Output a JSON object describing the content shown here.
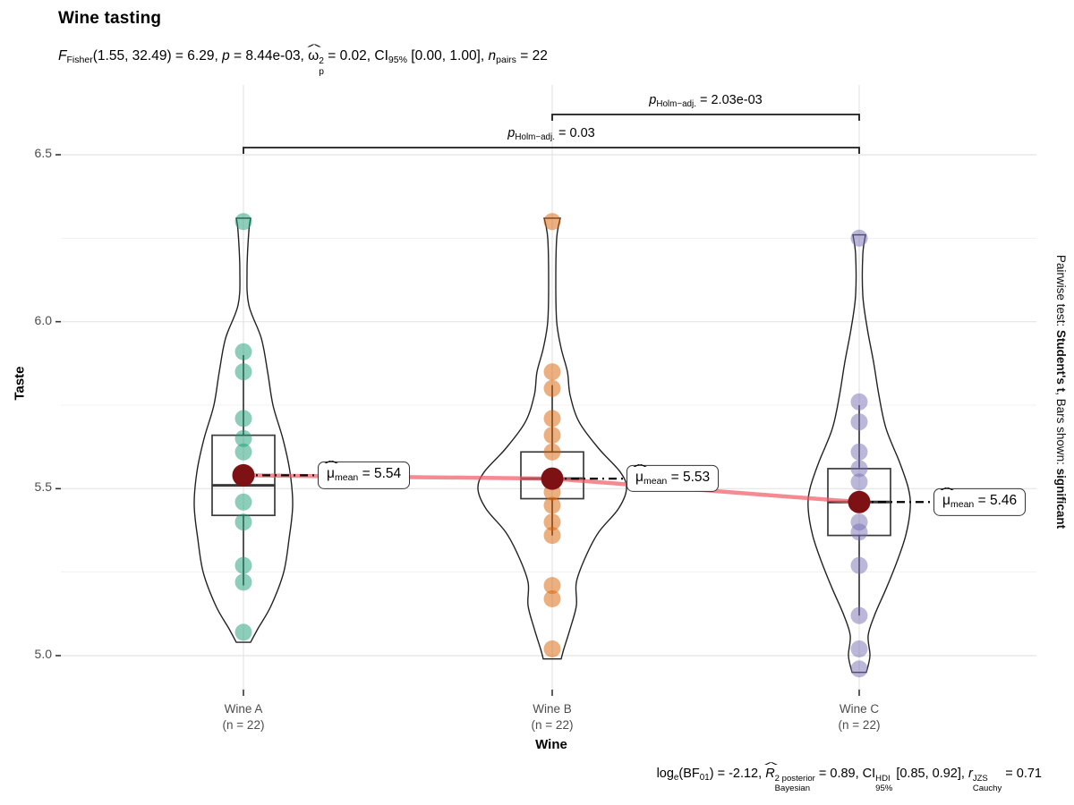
{
  "title": "Wine tasting",
  "subtitle_segments": [
    {
      "t": "F",
      "f": "i"
    },
    {
      "t": "Fisher",
      "f": "sub"
    },
    {
      "t": "(1.55, 32.49) = 6.29, ",
      "f": "n"
    },
    {
      "t": "p",
      "f": "i"
    },
    {
      "t": " = 8.44e-03, ",
      "f": "n"
    },
    {
      "t": "ω",
      "f": "n",
      "hat": true
    },
    {
      "f": "stack",
      "sup": "2",
      "sub": "p"
    },
    {
      "t": " = 0.02, CI",
      "f": "n"
    },
    {
      "t": "95%",
      "f": "sub"
    },
    {
      "t": " [0.00, 1.00], ",
      "f": "n"
    },
    {
      "t": "n",
      "f": "i"
    },
    {
      "t": "pairs",
      "f": "sub"
    },
    {
      "t": " = 22",
      "f": "n"
    }
  ],
  "caption_segments": [
    {
      "t": "log",
      "f": "n"
    },
    {
      "t": "e",
      "f": "sub"
    },
    {
      "t": "(BF",
      "f": "n"
    },
    {
      "t": "01",
      "f": "sub"
    },
    {
      "t": ") = -2.12, ",
      "f": "n"
    },
    {
      "t": "R",
      "f": "i",
      "hat": true
    },
    {
      "f": "stack",
      "sup": "2 posterior",
      "sub": "Bayesian"
    },
    {
      "t": " = 0.89, CI",
      "f": "n"
    },
    {
      "f": "stack",
      "sup": "HDI",
      "sub": "95%"
    },
    {
      "t": " [0.85, 0.92], ",
      "f": "n"
    },
    {
      "t": "r",
      "f": "i"
    },
    {
      "f": "stack",
      "sup": "JZS",
      "sub": "Cauchy"
    },
    {
      "t": " = 0.71",
      "f": "n"
    }
  ],
  "side_note_segments": [
    {
      "t": "Pairwise test: ",
      "f": "n"
    },
    {
      "t": "Student's t",
      "f": "b"
    },
    {
      "t": ", Bars shown: ",
      "f": "n"
    },
    {
      "t": "significant",
      "f": "b"
    }
  ],
  "chart_data": {
    "type": "violin-box-dot",
    "title": "Wine tasting",
    "xlabel": "Wine",
    "ylabel": "Taste",
    "y_tick_labels": [
      "6.5",
      "6.0",
      "5.5",
      "5.0"
    ],
    "y_tick_values": [
      6.5,
      6.0,
      5.5,
      5.0
    ],
    "y_minor_values": [
      6.25,
      5.75,
      5.25
    ],
    "ylim": [
      4.9,
      6.71
    ],
    "grid": true,
    "legend_position": "none",
    "colors": {
      "mean_point": "#7E1113",
      "mean_trend_line": "#F05A64",
      "violin_stroke": "#222222",
      "box_stroke": "#3A3A3A",
      "grid_major": "#E4E4E4",
      "grid_minor": "#F1F1F1",
      "axis_text": "#4D4D4D",
      "tick_mark": "#333333",
      "bracket": "#1A1A1A",
      "connector": "#000000"
    },
    "groups": [
      {
        "label": "Wine A",
        "sublabel": "(n = 22)",
        "n": 22,
        "point_color": "#1B9E77",
        "mean": 5.54,
        "median": 5.51,
        "q1": 5.42,
        "q3": 5.66,
        "whisker_low": 5.21,
        "whisker_high": 5.9,
        "points": [
          6.3,
          5.91,
          5.85,
          5.71,
          5.65,
          5.61,
          5.46,
          5.4,
          5.27,
          5.22,
          5.07
        ],
        "violin_profile": [
          [
            6.31,
            8
          ],
          [
            6.27,
            6
          ],
          [
            6.15,
            4
          ],
          [
            6.05,
            6
          ],
          [
            5.95,
            20
          ],
          [
            5.85,
            27
          ],
          [
            5.75,
            33
          ],
          [
            5.65,
            44
          ],
          [
            5.55,
            52
          ],
          [
            5.45,
            55
          ],
          [
            5.35,
            51
          ],
          [
            5.25,
            45
          ],
          [
            5.15,
            31
          ],
          [
            5.08,
            16
          ],
          [
            5.04,
            8
          ]
        ],
        "mean_label_segments": [
          {
            "t": "μ",
            "f": "n",
            "hat": true
          },
          {
            "t": "mean",
            "f": "sub"
          },
          {
            "t": " = 5.54",
            "f": "n"
          }
        ]
      },
      {
        "label": "Wine B",
        "sublabel": "(n = 22)",
        "n": 22,
        "point_color": "#D95F02",
        "mean": 5.53,
        "median": 5.53,
        "q1": 5.47,
        "q3": 5.61,
        "whisker_low": 5.36,
        "whisker_high": 5.81,
        "points": [
          6.3,
          5.85,
          5.8,
          5.71,
          5.66,
          5.61,
          5.49,
          5.45,
          5.4,
          5.36,
          5.21,
          5.17,
          5.02
        ],
        "violin_profile": [
          [
            6.31,
            9
          ],
          [
            6.25,
            5
          ],
          [
            6.12,
            4
          ],
          [
            6.0,
            5
          ],
          [
            5.92,
            10
          ],
          [
            5.85,
            17
          ],
          [
            5.78,
            20
          ],
          [
            5.7,
            30
          ],
          [
            5.62,
            52
          ],
          [
            5.55,
            76
          ],
          [
            5.5,
            83
          ],
          [
            5.44,
            74
          ],
          [
            5.37,
            52
          ],
          [
            5.3,
            38
          ],
          [
            5.22,
            27
          ],
          [
            5.15,
            27
          ],
          [
            5.08,
            20
          ],
          [
            5.02,
            13
          ],
          [
            4.99,
            10
          ]
        ],
        "mean_label_segments": [
          {
            "t": "μ",
            "f": "n",
            "hat": true
          },
          {
            "t": "mean",
            "f": "sub"
          },
          {
            "t": " = 5.53",
            "f": "n"
          }
        ]
      },
      {
        "label": "Wine C",
        "sublabel": "(n = 22)",
        "n": 22,
        "point_color": "#7570B3",
        "mean": 5.46,
        "median": 5.46,
        "q1": 5.36,
        "q3": 5.56,
        "whisker_low": 5.12,
        "whisker_high": 5.75,
        "points": [
          6.25,
          5.76,
          5.7,
          5.61,
          5.56,
          5.52,
          5.4,
          5.37,
          5.27,
          5.12,
          5.02,
          4.96
        ],
        "violin_profile": [
          [
            6.26,
            7
          ],
          [
            6.2,
            4
          ],
          [
            6.08,
            4
          ],
          [
            5.98,
            9
          ],
          [
            5.88,
            16
          ],
          [
            5.78,
            22
          ],
          [
            5.68,
            30
          ],
          [
            5.58,
            45
          ],
          [
            5.5,
            55
          ],
          [
            5.44,
            57
          ],
          [
            5.36,
            52
          ],
          [
            5.28,
            42
          ],
          [
            5.2,
            30
          ],
          [
            5.12,
            17
          ],
          [
            5.06,
            10
          ],
          [
            5.0,
            12
          ],
          [
            4.95,
            8
          ]
        ],
        "mean_label_segments": [
          {
            "t": "μ",
            "f": "n",
            "hat": true
          },
          {
            "t": "mean",
            "f": "sub"
          },
          {
            "t": " = 5.46",
            "f": "n"
          }
        ]
      }
    ],
    "comparisons": [
      {
        "groups": [
          1,
          2
        ],
        "p_text": "p Holm−adj. = 2.03e-03",
        "label_segments": [
          {
            "t": "p",
            "f": "i"
          },
          {
            "t": "Holm−adj.",
            "f": "sub"
          },
          {
            "t": " = 2.03e-03",
            "f": "n"
          }
        ]
      },
      {
        "groups": [
          0,
          2
        ],
        "p_text": "p Holm−adj. = 0.03",
        "label_segments": [
          {
            "t": "p",
            "f": "i"
          },
          {
            "t": "Holm−adj.",
            "f": "sub"
          },
          {
            "t": " = 0.03",
            "f": "n"
          }
        ]
      }
    ]
  }
}
